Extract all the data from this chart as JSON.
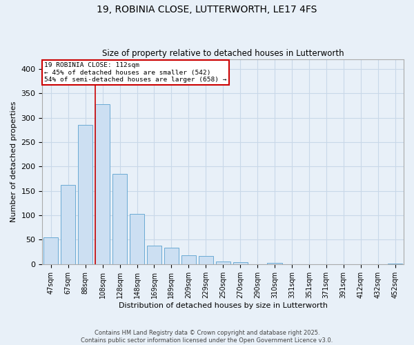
{
  "title_line1": "19, ROBINIA CLOSE, LUTTERWORTH, LE17 4FS",
  "title_line2": "Size of property relative to detached houses in Lutterworth",
  "xlabel": "Distribution of detached houses by size in Lutterworth",
  "ylabel": "Number of detached properties",
  "bar_labels": [
    "47sqm",
    "67sqm",
    "88sqm",
    "108sqm",
    "128sqm",
    "148sqm",
    "169sqm",
    "189sqm",
    "209sqm",
    "229sqm",
    "250sqm",
    "270sqm",
    "290sqm",
    "310sqm",
    "331sqm",
    "351sqm",
    "371sqm",
    "391sqm",
    "412sqm",
    "432sqm",
    "452sqm"
  ],
  "bar_values": [
    55,
    162,
    285,
    327,
    185,
    103,
    38,
    34,
    18,
    17,
    6,
    4,
    0,
    3,
    0,
    0,
    0,
    0,
    0,
    0,
    1
  ],
  "bar_color": "#ccdff2",
  "bar_edge_color": "#6aaad4",
  "annotation_line1": "19 ROBINIA CLOSE: 112sqm",
  "annotation_line2": "← 45% of detached houses are smaller (542)",
  "annotation_line3": "54% of semi-detached houses are larger (658) →",
  "annotation_box_facecolor": "#ffffff",
  "annotation_box_edgecolor": "#cc0000",
  "vline_color": "#cc0000",
  "vline_x": 2.58,
  "grid_color": "#c8d8e8",
  "bg_color": "#e8f0f8",
  "ylim": [
    0,
    420
  ],
  "yticks": [
    0,
    50,
    100,
    150,
    200,
    250,
    300,
    350,
    400
  ],
  "footer_line1": "Contains HM Land Registry data © Crown copyright and database right 2025.",
  "footer_line2": "Contains public sector information licensed under the Open Government Licence v3.0."
}
